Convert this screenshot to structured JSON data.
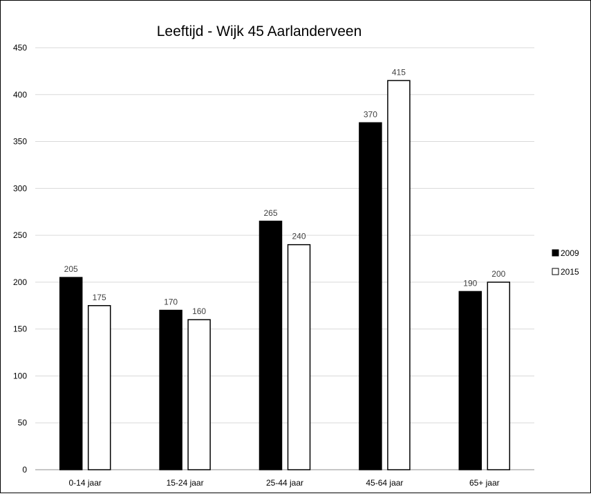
{
  "chart_data": {
    "type": "bar",
    "title": "Leeftijd  - Wijk 45 Aarlanderveen",
    "xlabel": "",
    "ylabel": "",
    "categories": [
      "0-14 jaar",
      "15-24 jaar",
      "25-44 jaar",
      "45-64 jaar",
      "65+ jaar"
    ],
    "series": [
      {
        "name": "2009",
        "values": [
          205,
          170,
          265,
          370,
          190
        ],
        "fill": "#000000"
      },
      {
        "name": "2015",
        "values": [
          175,
          160,
          240,
          415,
          200
        ],
        "fill": "#ffffff"
      }
    ],
    "ylim": [
      0,
      450
    ],
    "yticks": [
      0,
      50,
      100,
      150,
      200,
      250,
      300,
      350,
      400,
      450
    ],
    "grid": true,
    "legend": "right"
  }
}
